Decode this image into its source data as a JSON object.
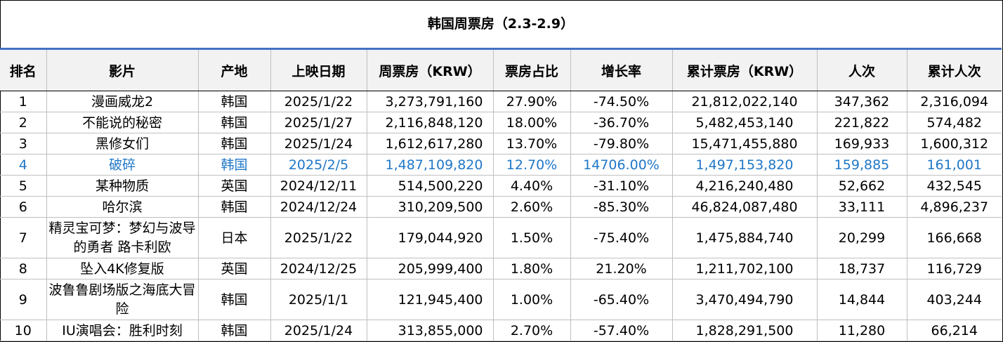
{
  "title": "韩国周票房（2.3-2.9）",
  "columns": [
    "排名",
    "影片",
    "产地",
    "上映日期",
    "周票房（KRW）",
    "票房占比",
    "增长率",
    "累计票房（KRW）",
    "人次",
    "累计人次"
  ],
  "colors": {
    "header_bg": "#f2f2f2",
    "title_rule": "#4472c4",
    "highlight_text": "#1f77c8"
  },
  "rows": [
    {
      "rank": "1",
      "film": "漫画威龙2",
      "origin": "韩国",
      "date": "2025/1/22",
      "weekly": "3,273,791,160",
      "share": "27.90%",
      "growth": "-74.50%",
      "total": "21,812,022,140",
      "admissions": "347,362",
      "total_admissions": "2,316,094"
    },
    {
      "rank": "2",
      "film": "不能说的秘密",
      "origin": "韩国",
      "date": "2025/1/27",
      "weekly": "2,116,848,120",
      "share": "18.00%",
      "growth": "-36.70%",
      "total": "5,482,453,140",
      "admissions": "221,822",
      "total_admissions": "574,482"
    },
    {
      "rank": "3",
      "film": "黑修女们",
      "origin": "韩国",
      "date": "2025/1/24",
      "weekly": "1,612,617,280",
      "share": "13.70%",
      "growth": "-79.80%",
      "total": "15,471,455,880",
      "admissions": "169,933",
      "total_admissions": "1,600,312"
    },
    {
      "rank": "4",
      "film": "破碎",
      "origin": "韩国",
      "date": "2025/2/5",
      "weekly": "1,487,109,820",
      "share": "12.70%",
      "growth": "14706.00%",
      "total": "1,497,153,820",
      "admissions": "159,885",
      "total_admissions": "161,001"
    },
    {
      "rank": "5",
      "film": "某种物质",
      "origin": "英国",
      "date": "2024/12/11",
      "weekly": "514,500,220",
      "share": "4.40%",
      "growth": "-31.10%",
      "total": "4,216,240,480",
      "admissions": "52,662",
      "total_admissions": "432,545"
    },
    {
      "rank": "6",
      "film": "哈尔滨",
      "origin": "韩国",
      "date": "2024/12/24",
      "weekly": "310,209,500",
      "share": "2.60%",
      "growth": "-85.30%",
      "total": "46,824,087,480",
      "admissions": "33,111",
      "total_admissions": "4,896,237"
    },
    {
      "rank": "7",
      "film": "精灵宝可梦：梦幻与波导的勇者 路卡利欧",
      "origin": "日本",
      "date": "2025/1/22",
      "weekly": "179,044,920",
      "share": "1.50%",
      "growth": "-75.40%",
      "total": "1,475,884,740",
      "admissions": "20,299",
      "total_admissions": "166,668"
    },
    {
      "rank": "8",
      "film": "坠入4K修复版",
      "origin": "英国",
      "date": "2024/12/25",
      "weekly": "205,999,400",
      "share": "1.80%",
      "growth": "21.20%",
      "total": "1,211,702,100",
      "admissions": "18,737",
      "total_admissions": "116,729"
    },
    {
      "rank": "9",
      "film": "波鲁鲁剧场版之海底大冒险",
      "origin": "韩国",
      "date": "2025/1/1",
      "weekly": "121,945,400",
      "share": "1.00%",
      "growth": "-65.40%",
      "total": "3,470,494,790",
      "admissions": "14,844",
      "total_admissions": "403,244"
    },
    {
      "rank": "10",
      "film": "IU演唱会：胜利时刻",
      "origin": "韩国",
      "date": "2025/1/24",
      "weekly": "313,855,000",
      "share": "2.70%",
      "growth": "-57.40%",
      "total": "1,828,291,500",
      "admissions": "11,280",
      "total_admissions": "66,214"
    }
  ],
  "chart_data": {
    "type": "table",
    "title": "韩国周票房（2.3-2.9）",
    "highlighted_rank": "4"
  }
}
